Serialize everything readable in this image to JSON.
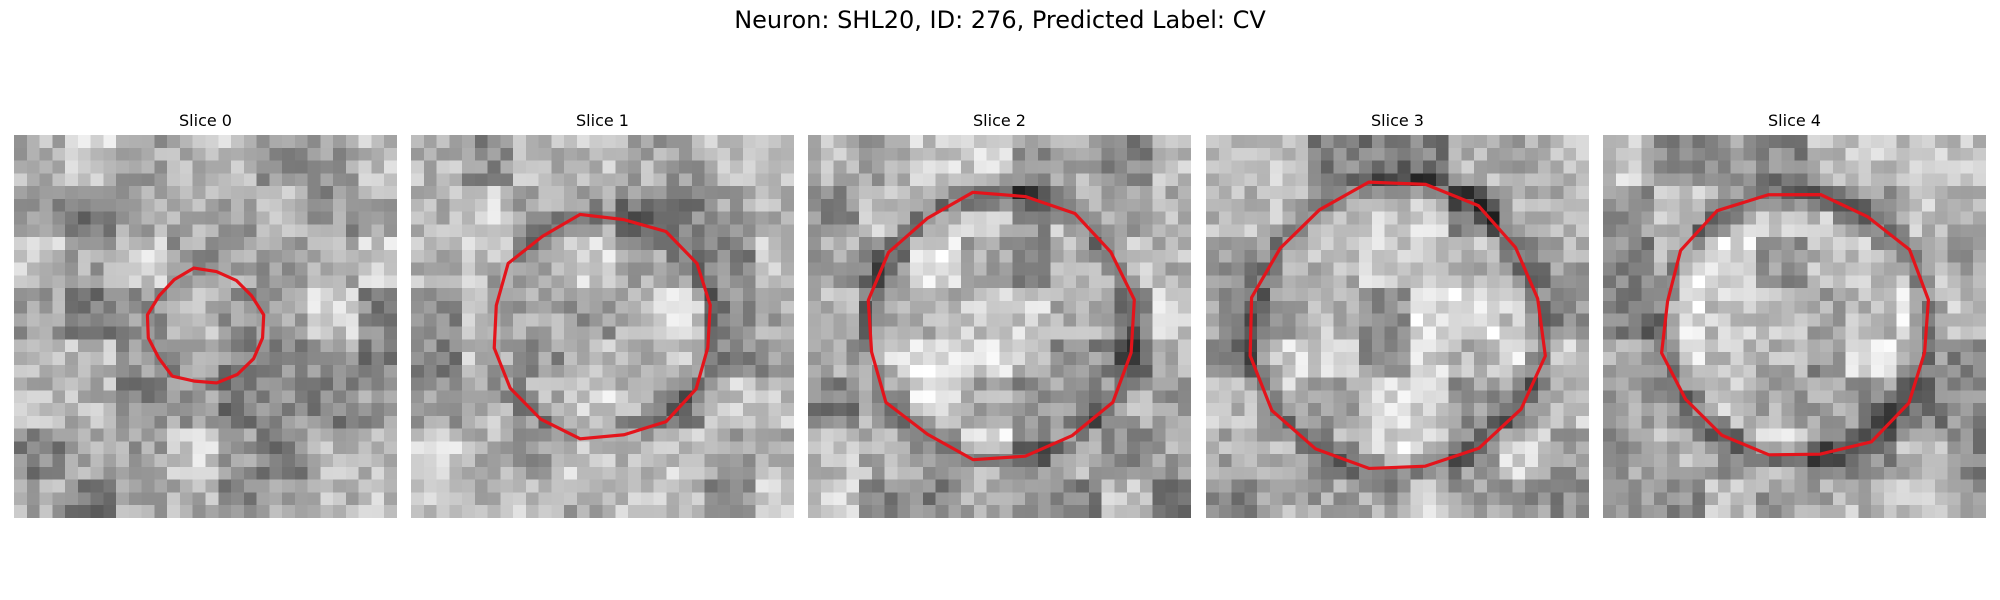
{
  "figure": {
    "title": "Neuron: SHL20, ID: 276, Predicted Label: CV",
    "contour_color": "#e4141b"
  },
  "panels": [
    {
      "label": "Slice 0",
      "contour_radius": 0.15,
      "ring_strength": 0.15,
      "background_variant": 0,
      "content": "grayscale EM patch with small red polygon contour"
    },
    {
      "label": "Slice 1",
      "contour_radius": 0.29,
      "ring_strength": 0.55,
      "background_variant": 1,
      "content": "grayscale EM patch with red polygon contour around a bright round body"
    },
    {
      "label": "Slice 2",
      "contour_radius": 0.35,
      "ring_strength": 0.75,
      "background_variant": 2,
      "content": "grayscale EM patch with red polygon contour around a round body"
    },
    {
      "label": "Slice 3",
      "contour_radius": 0.38,
      "ring_strength": 0.85,
      "background_variant": 3,
      "content": "grayscale EM patch with red polygon contour around a round body with dark ring"
    },
    {
      "label": "Slice 4",
      "contour_radius": 0.35,
      "ring_strength": 1.0,
      "background_variant": 4,
      "content": "grayscale EM patch with red polygon contour around a round body with dark ring"
    }
  ]
}
